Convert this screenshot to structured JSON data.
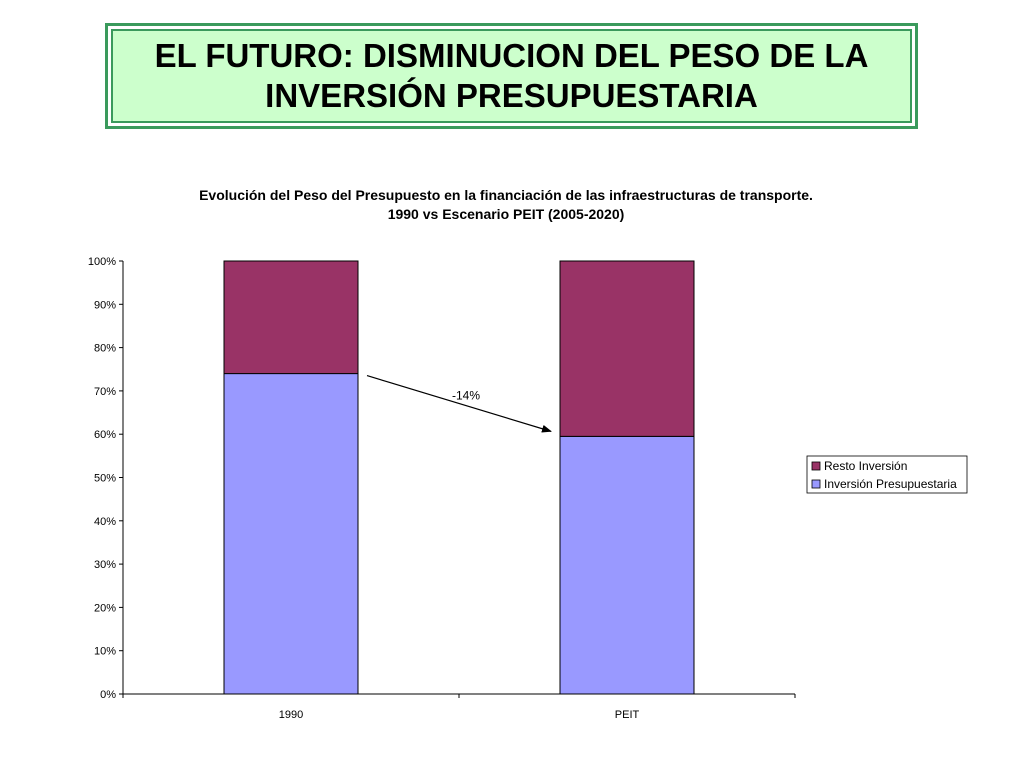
{
  "slide": {
    "title": "EL FUTURO: DISMINUCION DEL PESO DE LA\nINVERSIÓN PRESUPUESTARIA"
  },
  "chart_data": {
    "type": "bar",
    "stacked": true,
    "title": "Evolución del Peso del Presupuesto en la financiación de  las infraestructuras de transporte.",
    "subtitle": "1990 vs Escenario PEIT (2005-2020)",
    "categories": [
      "1990",
      "PEIT"
    ],
    "series": [
      {
        "name": "Inversión Presupuestaria",
        "values": [
          74,
          59.5
        ],
        "color": "#9999ff"
      },
      {
        "name": "Resto Inversión",
        "values": [
          26,
          40.5
        ],
        "color": "#993366"
      }
    ],
    "ylim": [
      0,
      100
    ],
    "yticks": [
      "0%",
      "10%",
      "20%",
      "30%",
      "40%",
      "50%",
      "60%",
      "70%",
      "80%",
      "90%",
      "100%"
    ],
    "xlabel": "",
    "ylabel": "",
    "grid": false,
    "legend_position": "right",
    "legend_order": [
      "Resto Inversión",
      "Inversión Presupuestaria"
    ],
    "annotation": {
      "text": "-14%",
      "type": "arrow",
      "from_category": "1990",
      "to_category": "PEIT"
    }
  }
}
